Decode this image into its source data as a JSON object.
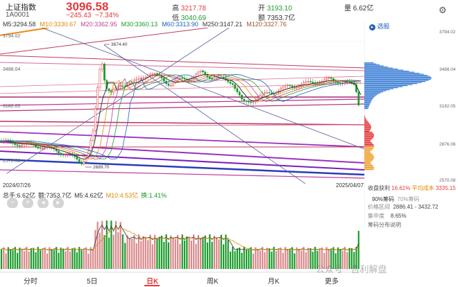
{
  "header": {
    "name": "上证指数",
    "code": "1A0001",
    "price": "3096.58",
    "change": "−245.43",
    "change_pct": "−7.34%",
    "high_label": "高",
    "high": "3217.78",
    "low_label": "低",
    "low": "3040.69",
    "open_label": "开",
    "open": "3193.10",
    "amount_label": "额",
    "amount": "7353.7亿",
    "volume_label": "量",
    "volume": "6.62亿"
  },
  "ma": {
    "ma5": "M5:3294.58",
    "ma10": "M10:3330.67",
    "ma20": "M20:3362.95",
    "ma30": "M30:3360.13",
    "ma60": "M60:3313.90",
    "ma250": "M250:3147.21",
    "ma120": "M120:3327.76"
  },
  "axis_right": [
    "3794.02",
    "3488.04",
    "3182.05",
    "2876.06",
    "2570.08"
  ],
  "axis_left": [
    "3794.02",
    "3488.04",
    "3182.05",
    "2570.08"
  ],
  "annotations": {
    "high_mark": "3674.40",
    "low_mark": "2689.70"
  },
  "dates": {
    "start": "2024/07/26",
    "end": "2025/04/07"
  },
  "vol_info": {
    "total": "总手:6.62亿",
    "amount": "额:7353.7亿",
    "m5": "M5:4.62亿",
    "m10": "M10:4.53亿",
    "turnover": "换:1.41%"
  },
  "controls": [
    "−",
    "+",
    "◂",
    "▸"
  ],
  "right_panel": {
    "select_label": "选股",
    "profit_label": "收盘获利",
    "profit_value": "16.61%",
    "avgcost_label": "平均成本",
    "avgcost_value": "3335.15",
    "chip90": "90%筹码",
    "chip70": "70%筹码",
    "price_range_label": "价格区间",
    "price_range": "2886.41 - 3432.72",
    "concentration_label": "集中度",
    "concentration": "8.65%",
    "explain": "筹码分布说明"
  },
  "tabs": [
    "分时",
    "5日",
    "日K",
    "周K",
    "月K",
    "更多"
  ],
  "watermark": "公众号 · 吉利解盘",
  "colors": {
    "up": "#e4393c",
    "down": "#1a9c2b",
    "accent": "#1f5fbf"
  }
}
